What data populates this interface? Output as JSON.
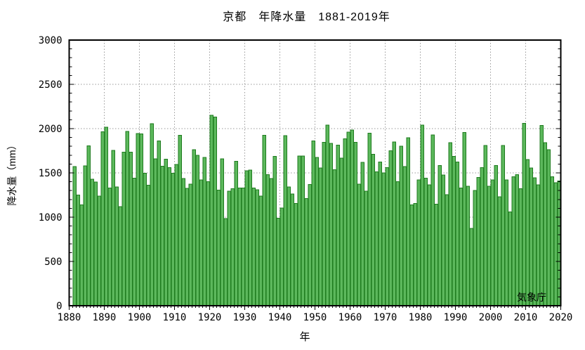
{
  "title": "京都　年降水量　1881-2019年",
  "x_axis_title": "年",
  "y_axis_title": "降水量（mm）",
  "source_label": "気象庁",
  "chart_data": {
    "type": "bar",
    "title": "京都　年降水量　1881-2019年",
    "xlabel": "年",
    "ylabel": "降水量（mm）",
    "year_start": 1881,
    "year_end": 2019,
    "xlim": [
      1880,
      2020
    ],
    "ylim": [
      0,
      3000
    ],
    "yticks": [
      0,
      500,
      1000,
      1500,
      2000,
      2500,
      3000
    ],
    "xticks": [
      1880,
      1890,
      1900,
      1910,
      1920,
      1930,
      1940,
      1950,
      1960,
      1970,
      1980,
      1990,
      2000,
      2010,
      2020
    ],
    "y_minor_step": 100,
    "grid": "dotted",
    "legend": "none",
    "bar_fill": "#5cb85c",
    "bar_border": "#1d7a1d",
    "grid_color": "#9a9a9a",
    "axis_color": "#000000",
    "values": [
      1570,
      1250,
      1140,
      1580,
      1805,
      1430,
      1395,
      1240,
      1965,
      2015,
      1330,
      1755,
      1340,
      1120,
      1735,
      1970,
      1735,
      1440,
      1945,
      1940,
      1495,
      1360,
      2055,
      1660,
      1860,
      1575,
      1655,
      1560,
      1495,
      1595,
      1925,
      1435,
      1325,
      1375,
      1760,
      1700,
      1420,
      1675,
      1400,
      2150,
      2130,
      1305,
      1660,
      985,
      1295,
      1320,
      1630,
      1330,
      1330,
      1525,
      1530,
      1330,
      1310,
      1240,
      1925,
      1480,
      1435,
      1685,
      990,
      1105,
      1920,
      1340,
      1260,
      1155,
      1690,
      1690,
      1210,
      1370,
      1860,
      1675,
      1555,
      1845,
      2040,
      1835,
      1535,
      1815,
      1665,
      1885,
      1960,
      1985,
      1845,
      1375,
      1620,
      1295,
      1950,
      1710,
      1510,
      1625,
      1500,
      1560,
      1750,
      1850,
      1400,
      1800,
      1570,
      1895,
      1140,
      1155,
      1420,
      2040,
      1440,
      1365,
      1930,
      1145,
      1585,
      1475,
      1255,
      1840,
      1685,
      1625,
      1330,
      1955,
      1350,
      875,
      1300,
      1450,
      1560,
      1810,
      1350,
      1420,
      1585,
      1230,
      1810,
      1420,
      1060,
      1455,
      1480,
      1320,
      2060,
      1650,
      1555,
      1445,
      1365,
      2035,
      1840,
      1760,
      1455,
      1390,
      1410
    ]
  }
}
